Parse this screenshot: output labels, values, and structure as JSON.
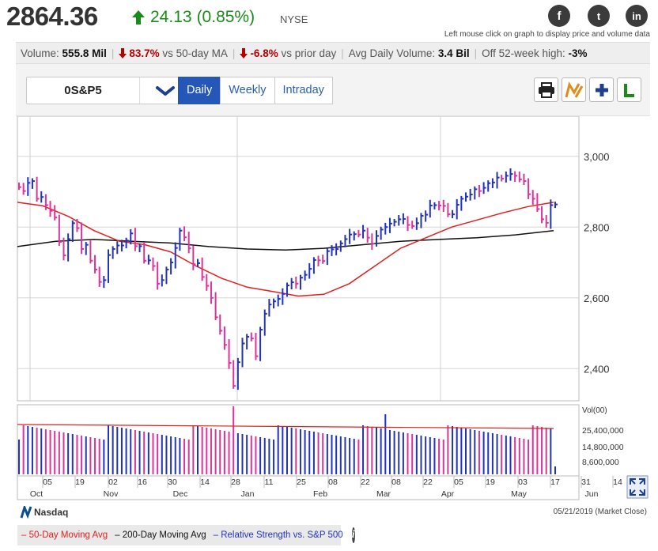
{
  "header": {
    "price": "2864.36",
    "change": "24.13",
    "change_pct": "(0.85%)",
    "exchange": "NYSE",
    "hint": "Left mouse click on graph to display price and volume data",
    "social": [
      "f",
      "t",
      "in"
    ]
  },
  "stats": {
    "volume_label": "Volume:",
    "volume_value": "555.8 Mil",
    "vs50_value": "83.7%",
    "vs50_label": "vs 50-day MA",
    "vsprior_value": "-6.8%",
    "vsprior_label": "vs prior day",
    "avg_label": "Avg Daily Volume:",
    "avg_value": "3.4 Bil",
    "off52_label": "Off 52-week high:",
    "off52_value": "-3%"
  },
  "toolbar": {
    "symbol": "0S&P5",
    "tabs": [
      "Daily",
      "Weekly",
      "Intraday"
    ],
    "active_tab": "Daily"
  },
  "chart": {
    "y_ticks": [
      "3,000",
      "2,800",
      "2,600",
      "2,400"
    ],
    "vol_label": "Vol(00)",
    "vol_ticks": [
      "25,400,000",
      "14,800,000",
      "8,600,000"
    ],
    "day_labels": [
      "05",
      "19",
      "02",
      "16",
      "30",
      "14",
      "28",
      "11",
      "25",
      "08",
      "22",
      "08",
      "22",
      "05",
      "19",
      "03",
      "17",
      "31",
      "14"
    ],
    "month_labels": [
      "Oct",
      "Nov",
      "Dec",
      "Jan",
      "Feb",
      "Mar",
      "Apr",
      "May",
      "Jun"
    ]
  },
  "footer": {
    "logo": "Nasdaq",
    "date": "05/21/2019 (Market Close)",
    "legend": [
      "50-Day Moving Avg",
      "200-Day Moving Avg",
      "Relative Strength vs. S&P 500"
    ]
  },
  "colors": {
    "up_bar": "#2233bb",
    "down_bar": "#dd3399",
    "ma50": "#e02020",
    "ma200": "#111111",
    "change_green": "#1a8a1a",
    "stat_red": "#b30000"
  },
  "chart_data": {
    "type": "candlestick",
    "period": "daily",
    "y_range": [
      2300,
      3100
    ],
    "close_series_approx": [
      2913,
      2902,
      2925,
      2930,
      2880,
      2885,
      2862,
      2846,
      2827,
      2758,
      2720,
      2766,
      2811,
      2797,
      2738,
      2750,
      2705,
      2680,
      2645,
      2650,
      2721,
      2738,
      2748,
      2748,
      2762,
      2782,
      2746,
      2746,
      2705,
      2706,
      2690,
      2640,
      2650,
      2680,
      2700,
      2741,
      2790,
      2771,
      2740,
      2695,
      2698,
      2659,
      2634,
      2600,
      2545,
      2507,
      2467,
      2416,
      2351,
      2418,
      2471,
      2490,
      2485,
      2435,
      2510,
      2555,
      2581,
      2590,
      2597,
      2611,
      2635,
      2644,
      2640,
      2657,
      2665,
      2682,
      2707,
      2706,
      2704,
      2732,
      2737,
      2738,
      2754,
      2766,
      2779,
      2780,
      2779,
      2790,
      2770,
      2753,
      2775,
      2793,
      2800,
      2810,
      2815,
      2822,
      2823,
      2806,
      2803,
      2811,
      2832,
      2835,
      2861,
      2862,
      2861,
      2860,
      2836,
      2836,
      2863,
      2880,
      2886,
      2892,
      2907,
      2902,
      2911,
      2924,
      2926,
      2940,
      2937,
      2945,
      2950,
      2945,
      2935,
      2930,
      2893,
      2880,
      2851,
      2822,
      2812,
      2862,
      2864
    ],
    "ma50_approx": [
      2870,
      2860,
      2830,
      2790,
      2760,
      2750,
      2730,
      2690,
      2655,
      2630,
      2618,
      2605,
      2610,
      2640,
      2690,
      2740,
      2770,
      2800,
      2820,
      2840,
      2858,
      2870
    ],
    "ma200_approx": [
      2745,
      2760,
      2765,
      2760,
      2755,
      2745,
      2738,
      2735,
      2740,
      2750,
      2760,
      2765,
      2770,
      2778,
      2790
    ],
    "volume_ma_approx": 32000000
  }
}
